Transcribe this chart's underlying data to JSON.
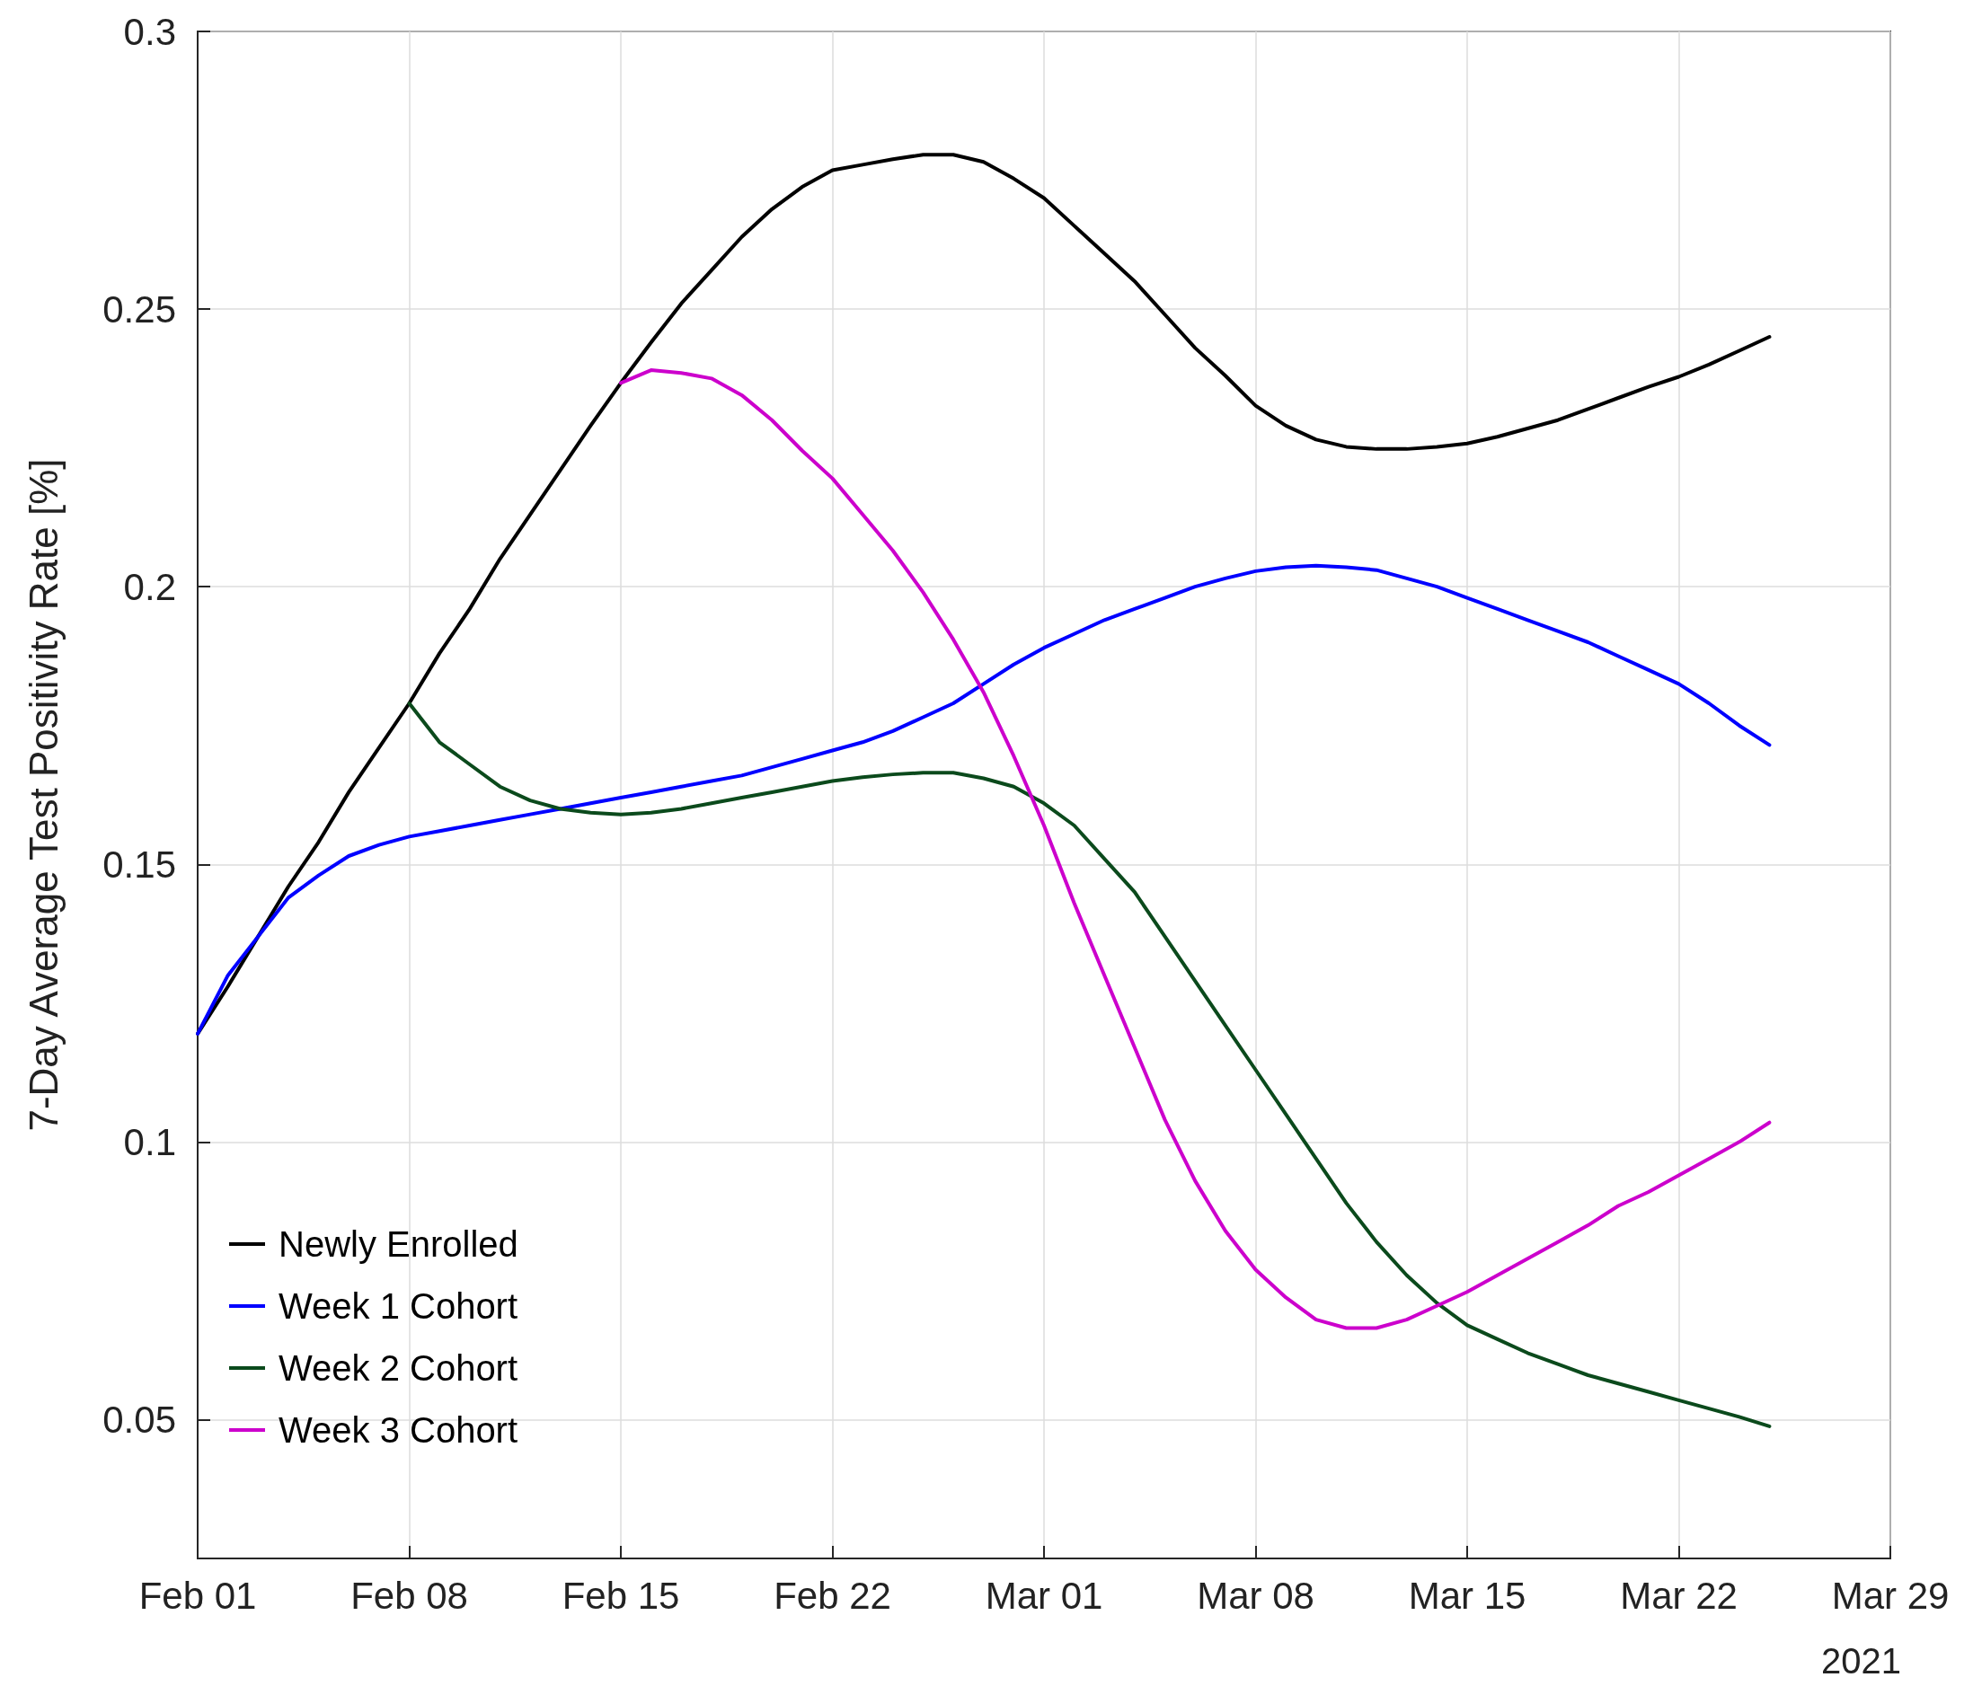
{
  "chart_data": {
    "type": "line",
    "ylabel": "7-Day Average Test Positivity Rate [%]",
    "annotations": [
      "2021"
    ],
    "x": [
      "2021-02-01",
      "2021-02-02",
      "2021-02-03",
      "2021-02-04",
      "2021-02-05",
      "2021-02-06",
      "2021-02-07",
      "2021-02-08",
      "2021-02-09",
      "2021-02-10",
      "2021-02-11",
      "2021-02-12",
      "2021-02-13",
      "2021-02-14",
      "2021-02-15",
      "2021-02-16",
      "2021-02-17",
      "2021-02-18",
      "2021-02-19",
      "2021-02-20",
      "2021-02-21",
      "2021-02-22",
      "2021-02-23",
      "2021-02-24",
      "2021-02-25",
      "2021-02-26",
      "2021-02-27",
      "2021-02-28",
      "2021-03-01",
      "2021-03-02",
      "2021-03-03",
      "2021-03-04",
      "2021-03-05",
      "2021-03-06",
      "2021-03-07",
      "2021-03-08",
      "2021-03-09",
      "2021-03-10",
      "2021-03-11",
      "2021-03-12",
      "2021-03-13",
      "2021-03-14",
      "2021-03-15",
      "2021-03-16",
      "2021-03-17",
      "2021-03-18",
      "2021-03-19",
      "2021-03-20",
      "2021-03-21",
      "2021-03-22",
      "2021-03-23",
      "2021-03-24",
      "2021-03-25"
    ],
    "series": [
      {
        "name": "Newly Enrolled",
        "color": "#000000",
        "values": [
          0.1195,
          0.128,
          0.137,
          0.146,
          0.154,
          0.163,
          0.171,
          0.179,
          0.188,
          0.196,
          0.205,
          0.213,
          0.221,
          0.229,
          0.2367,
          0.244,
          0.251,
          0.257,
          0.263,
          0.268,
          0.272,
          0.275,
          0.276,
          0.277,
          0.2778,
          0.2778,
          0.2765,
          0.2735,
          0.27,
          0.265,
          0.26,
          0.255,
          0.249,
          0.243,
          0.238,
          0.2326,
          0.229,
          0.2265,
          0.2252,
          0.2248,
          0.2248,
          0.2252,
          0.2258,
          0.227,
          0.2285,
          0.23,
          0.232,
          0.234,
          0.236,
          0.2378,
          0.24,
          0.2425,
          0.245
        ]
      },
      {
        "name": "Week 1 Cohort",
        "color": "#0000ff",
        "values": [
          0.1195,
          0.13,
          0.137,
          0.144,
          0.148,
          0.1515,
          0.1535,
          0.155,
          0.156,
          0.157,
          0.158,
          0.159,
          0.16,
          0.161,
          0.162,
          0.163,
          0.164,
          0.165,
          0.166,
          0.1675,
          0.169,
          0.1705,
          0.172,
          0.174,
          0.1765,
          0.179,
          0.1825,
          0.186,
          0.189,
          0.1915,
          0.194,
          0.196,
          0.198,
          0.2,
          0.2015,
          0.2028,
          0.2035,
          0.2038,
          0.2035,
          0.203,
          0.2015,
          0.2,
          0.198,
          0.196,
          0.194,
          0.192,
          0.19,
          0.1875,
          0.185,
          0.1825,
          0.179,
          0.175,
          0.1715
        ]
      },
      {
        "name": "Week 2 Cohort",
        "color": "#0b4a1c",
        "x": [
          "2021-02-08",
          "2021-02-09",
          "2021-02-10",
          "2021-02-11",
          "2021-02-12",
          "2021-02-13",
          "2021-02-14",
          "2021-02-15",
          "2021-02-16",
          "2021-02-17",
          "2021-02-18",
          "2021-02-19",
          "2021-02-20",
          "2021-02-21",
          "2021-02-22",
          "2021-02-23",
          "2021-02-24",
          "2021-02-25",
          "2021-02-26",
          "2021-02-27",
          "2021-02-28",
          "2021-03-01",
          "2021-03-02",
          "2021-03-03",
          "2021-03-04",
          "2021-03-05",
          "2021-03-06",
          "2021-03-07",
          "2021-03-08",
          "2021-03-09",
          "2021-03-10",
          "2021-03-11",
          "2021-03-12",
          "2021-03-13",
          "2021-03-14",
          "2021-03-15",
          "2021-03-16",
          "2021-03-17",
          "2021-03-18",
          "2021-03-19",
          "2021-03-20",
          "2021-03-21",
          "2021-03-22",
          "2021-03-23",
          "2021-03-24",
          "2021-03-25"
        ],
        "values": [
          0.179,
          0.172,
          0.168,
          0.164,
          0.1615,
          0.16,
          0.1593,
          0.159,
          0.1593,
          0.16,
          0.161,
          0.162,
          0.163,
          0.164,
          0.165,
          0.1657,
          0.1662,
          0.1665,
          0.1665,
          0.1655,
          0.164,
          0.161,
          0.157,
          0.151,
          0.145,
          0.137,
          0.129,
          0.121,
          0.113,
          0.105,
          0.097,
          0.089,
          0.082,
          0.076,
          0.071,
          0.067,
          0.0645,
          0.062,
          0.06,
          0.058,
          0.0565,
          0.055,
          0.0535,
          0.052,
          0.0505,
          0.0488
        ]
      },
      {
        "name": "Week 3 Cohort",
        "color": "#cc00cc",
        "x": [
          "2021-02-15",
          "2021-02-16",
          "2021-02-17",
          "2021-02-18",
          "2021-02-19",
          "2021-02-20",
          "2021-02-21",
          "2021-02-22",
          "2021-02-23",
          "2021-02-24",
          "2021-02-25",
          "2021-02-26",
          "2021-02-27",
          "2021-02-28",
          "2021-03-01",
          "2021-03-02",
          "2021-03-03",
          "2021-03-04",
          "2021-03-05",
          "2021-03-06",
          "2021-03-07",
          "2021-03-08",
          "2021-03-09",
          "2021-03-10",
          "2021-03-11",
          "2021-03-12",
          "2021-03-13",
          "2021-03-14",
          "2021-03-15",
          "2021-03-16",
          "2021-03-17",
          "2021-03-18",
          "2021-03-19",
          "2021-03-20",
          "2021-03-21",
          "2021-03-22",
          "2021-03-23",
          "2021-03-24",
          "2021-03-25"
        ],
        "values": [
          0.2367,
          0.239,
          0.2385,
          0.2375,
          0.2345,
          0.23,
          0.2245,
          0.2195,
          0.213,
          0.2065,
          0.199,
          0.1905,
          0.181,
          0.1695,
          0.157,
          0.143,
          0.13,
          0.117,
          0.104,
          0.093,
          0.084,
          0.077,
          0.072,
          0.068,
          0.0665,
          0.0665,
          0.068,
          0.0705,
          0.073,
          0.076,
          0.079,
          0.082,
          0.085,
          0.0885,
          0.091,
          0.094,
          0.097,
          0.1,
          0.1035
        ]
      }
    ],
    "xlim": [
      "2021-02-01",
      "2021-03-29"
    ],
    "xticks": [
      {
        "value": "2021-02-01",
        "label": "Feb 01"
      },
      {
        "value": "2021-02-08",
        "label": "Feb 08"
      },
      {
        "value": "2021-02-15",
        "label": "Feb 15"
      },
      {
        "value": "2021-02-22",
        "label": "Feb 22"
      },
      {
        "value": "2021-03-01",
        "label": "Mar 01"
      },
      {
        "value": "2021-03-08",
        "label": "Mar 08"
      },
      {
        "value": "2021-03-15",
        "label": "Mar 15"
      },
      {
        "value": "2021-03-22",
        "label": "Mar 22"
      },
      {
        "value": "2021-03-29",
        "label": "Mar 29"
      }
    ],
    "ylim": [
      0.025,
      0.3
    ],
    "yticks": [
      0.05,
      0.1,
      0.15,
      0.2,
      0.25,
      0.3
    ],
    "grid": true,
    "legend": "bottom left",
    "marker": "none",
    "line_style": "solid"
  }
}
